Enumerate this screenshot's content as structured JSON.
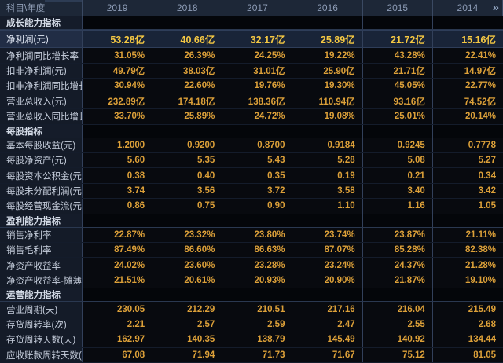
{
  "header": {
    "corner_label": "科目\\年度",
    "years": [
      "2019",
      "2018",
      "2017",
      "2016",
      "2015",
      "2014"
    ],
    "expand_icon": "»"
  },
  "sections": [
    {
      "title": "成长能力指标",
      "rows": [
        {
          "label": "净利润(元)",
          "highlight": true,
          "values": [
            "53.28亿",
            "40.66亿",
            "32.17亿",
            "25.89亿",
            "21.72亿",
            "15.16亿"
          ]
        },
        {
          "label": "净利润同比增长率",
          "values": [
            "31.05%",
            "26.39%",
            "24.25%",
            "19.22%",
            "43.28%",
            "22.41%"
          ]
        },
        {
          "label": "扣非净利润(元)",
          "values": [
            "49.79亿",
            "38.03亿",
            "31.01亿",
            "25.90亿",
            "21.71亿",
            "14.97亿"
          ]
        },
        {
          "label": "扣非净利润同比增长率",
          "values": [
            "30.94%",
            "22.60%",
            "19.76%",
            "19.30%",
            "45.05%",
            "22.77%"
          ]
        },
        {
          "label": "营业总收入(元)",
          "values": [
            "232.89亿",
            "174.18亿",
            "138.36亿",
            "110.94亿",
            "93.16亿",
            "74.52亿"
          ]
        },
        {
          "label": "营业总收入同比增长率",
          "values": [
            "33.70%",
            "25.89%",
            "24.72%",
            "19.08%",
            "25.01%",
            "20.14%"
          ]
        }
      ]
    },
    {
      "title": "每股指标",
      "rows": [
        {
          "label": "基本每股收益(元)",
          "values": [
            "1.2000",
            "0.9200",
            "0.8700",
            "0.9184",
            "0.9245",
            "0.7778"
          ]
        },
        {
          "label": "每股净资产(元)",
          "values": [
            "5.60",
            "5.35",
            "5.43",
            "5.28",
            "5.08",
            "5.27"
          ]
        },
        {
          "label": "每股资本公积金(元)",
          "values": [
            "0.38",
            "0.40",
            "0.35",
            "0.19",
            "0.21",
            "0.34"
          ]
        },
        {
          "label": "每股未分配利润(元)",
          "values": [
            "3.74",
            "3.56",
            "3.72",
            "3.58",
            "3.40",
            "3.42"
          ]
        },
        {
          "label": "每股经营现金流(元)",
          "values": [
            "0.86",
            "0.75",
            "0.90",
            "1.10",
            "1.16",
            "1.05"
          ]
        }
      ]
    },
    {
      "title": "盈利能力指标",
      "rows": [
        {
          "label": "销售净利率",
          "values": [
            "22.87%",
            "23.32%",
            "23.80%",
            "23.74%",
            "23.87%",
            "21.11%"
          ]
        },
        {
          "label": "销售毛利率",
          "values": [
            "87.49%",
            "86.60%",
            "86.63%",
            "87.07%",
            "85.28%",
            "82.38%"
          ]
        },
        {
          "label": "净资产收益率",
          "values": [
            "24.02%",
            "23.60%",
            "23.28%",
            "23.24%",
            "24.37%",
            "21.28%"
          ]
        },
        {
          "label": "净资产收益率-摊薄",
          "values": [
            "21.51%",
            "20.61%",
            "20.93%",
            "20.90%",
            "21.87%",
            "19.10%"
          ]
        }
      ]
    },
    {
      "title": "运营能力指标",
      "rows": [
        {
          "label": "营业周期(天)",
          "values": [
            "230.05",
            "212.29",
            "210.51",
            "217.16",
            "216.04",
            "215.49"
          ]
        },
        {
          "label": "存货周转率(次)",
          "values": [
            "2.21",
            "2.57",
            "2.59",
            "2.47",
            "2.55",
            "2.68"
          ]
        },
        {
          "label": "存货周转天数(天)",
          "values": [
            "162.97",
            "140.35",
            "138.79",
            "145.49",
            "140.92",
            "134.44"
          ]
        },
        {
          "label": "应收账款周转天数(天)",
          "values": [
            "67.08",
            "71.94",
            "71.73",
            "71.67",
            "75.12",
            "81.05"
          ]
        }
      ]
    }
  ],
  "colors": {
    "header_bg": "#1d2737",
    "label_column_bg": "#141b28",
    "data_bg": "#080a0f",
    "highlight_row_bg": "#192438",
    "value_text": "#dca039",
    "highlight_value_text": "#f5c843",
    "label_text": "#c6cedc",
    "grid_line": "#32405a"
  }
}
